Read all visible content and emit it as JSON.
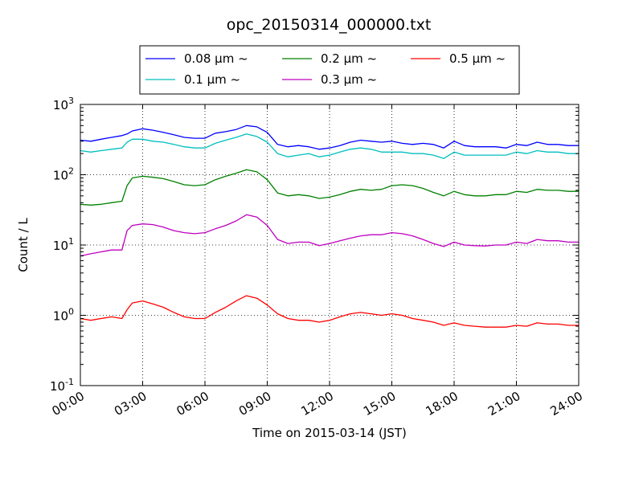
{
  "chart_data": {
    "type": "line",
    "title": "opc_20150314_000000.txt",
    "xlabel": "Time on 2015-03-14 (JST)",
    "ylabel": "Count / L",
    "x_scale": "time",
    "y_scale": "log",
    "xlim": [
      "00:00",
      "24:00"
    ],
    "ylim": [
      0.1,
      1000
    ],
    "grid": true,
    "legend_placement": "top-center",
    "x_ticks": [
      "00:00",
      "03:00",
      "06:00",
      "09:00",
      "12:00",
      "15:00",
      "18:00",
      "21:00",
      "24:00"
    ],
    "y_ticks": [
      {
        "value": 0.1,
        "base": "10",
        "exp": "-1"
      },
      {
        "value": 1,
        "base": "10",
        "exp": "0"
      },
      {
        "value": 10,
        "base": "10",
        "exp": "1"
      },
      {
        "value": 100,
        "base": "10",
        "exp": "2"
      },
      {
        "value": 1000,
        "base": "10",
        "exp": "3"
      }
    ],
    "x": [
      "00:00",
      "00:30",
      "01:00",
      "01:30",
      "02:00",
      "02:15",
      "02:30",
      "03:00",
      "03:30",
      "04:00",
      "04:30",
      "05:00",
      "05:30",
      "06:00",
      "06:30",
      "07:00",
      "07:30",
      "08:00",
      "08:30",
      "09:00",
      "09:30",
      "10:00",
      "10:30",
      "11:00",
      "11:30",
      "12:00",
      "12:30",
      "13:00",
      "13:30",
      "14:00",
      "14:30",
      "15:00",
      "15:30",
      "16:00",
      "16:30",
      "17:00",
      "17:30",
      "18:00",
      "18:30",
      "19:00",
      "19:30",
      "20:00",
      "20:30",
      "21:00",
      "21:30",
      "22:00",
      "22:30",
      "23:00",
      "23:30",
      "24:00"
    ],
    "series": [
      {
        "name": "0.08 μm ~",
        "color": "#0000ff",
        "values": [
          310,
          300,
          320,
          340,
          360,
          380,
          420,
          450,
          430,
          400,
          370,
          340,
          330,
          330,
          390,
          410,
          440,
          500,
          480,
          400,
          270,
          250,
          260,
          250,
          230,
          240,
          260,
          290,
          310,
          300,
          290,
          300,
          280,
          270,
          280,
          270,
          240,
          300,
          260,
          250,
          250,
          250,
          240,
          270,
          260,
          290,
          270,
          270,
          260,
          260
        ]
      },
      {
        "name": "0.1 μm ~",
        "color": "#00bfbf",
        "values": [
          220,
          210,
          220,
          230,
          240,
          290,
          320,
          320,
          300,
          290,
          270,
          250,
          240,
          240,
          280,
          310,
          340,
          380,
          350,
          290,
          200,
          180,
          190,
          200,
          180,
          190,
          210,
          230,
          240,
          230,
          210,
          210,
          210,
          200,
          200,
          190,
          170,
          210,
          190,
          190,
          190,
          190,
          190,
          210,
          200,
          220,
          210,
          210,
          200,
          200
        ]
      },
      {
        "name": "0.2 μm ~",
        "color": "#008000",
        "values": [
          38,
          37,
          38,
          40,
          42,
          70,
          90,
          95,
          92,
          88,
          80,
          72,
          70,
          72,
          85,
          95,
          105,
          118,
          110,
          85,
          55,
          50,
          52,
          50,
          46,
          48,
          52,
          58,
          62,
          60,
          62,
          70,
          72,
          70,
          64,
          56,
          50,
          58,
          52,
          50,
          50,
          52,
          52,
          58,
          56,
          62,
          60,
          60,
          58,
          58
        ]
      },
      {
        "name": "0.3 μm ~",
        "color": "#bf00bf",
        "values": [
          7,
          7.5,
          8,
          8.5,
          8.5,
          16,
          19,
          20,
          19.5,
          18,
          16,
          15,
          14.5,
          15,
          17,
          19,
          22,
          27,
          25,
          19,
          12,
          10.5,
          11,
          11,
          9.8,
          10.5,
          11.5,
          12.5,
          13.5,
          14,
          14,
          15,
          14.5,
          13.5,
          12,
          10.5,
          9.5,
          11,
          10,
          9.8,
          9.7,
          10,
          10,
          11,
          10.5,
          12,
          11.5,
          11.5,
          11,
          11
        ]
      },
      {
        "name": "0.5 μm ~",
        "color": "#ff0000",
        "values": [
          0.9,
          0.85,
          0.9,
          0.95,
          0.9,
          1.2,
          1.5,
          1.6,
          1.45,
          1.3,
          1.1,
          0.95,
          0.9,
          0.9,
          1.1,
          1.3,
          1.6,
          1.9,
          1.75,
          1.4,
          1.05,
          0.9,
          0.85,
          0.85,
          0.8,
          0.85,
          0.95,
          1.05,
          1.1,
          1.05,
          1,
          1.05,
          1,
          0.9,
          0.85,
          0.8,
          0.72,
          0.78,
          0.72,
          0.7,
          0.68,
          0.68,
          0.68,
          0.72,
          0.7,
          0.78,
          0.75,
          0.75,
          0.72,
          0.72
        ]
      }
    ]
  }
}
